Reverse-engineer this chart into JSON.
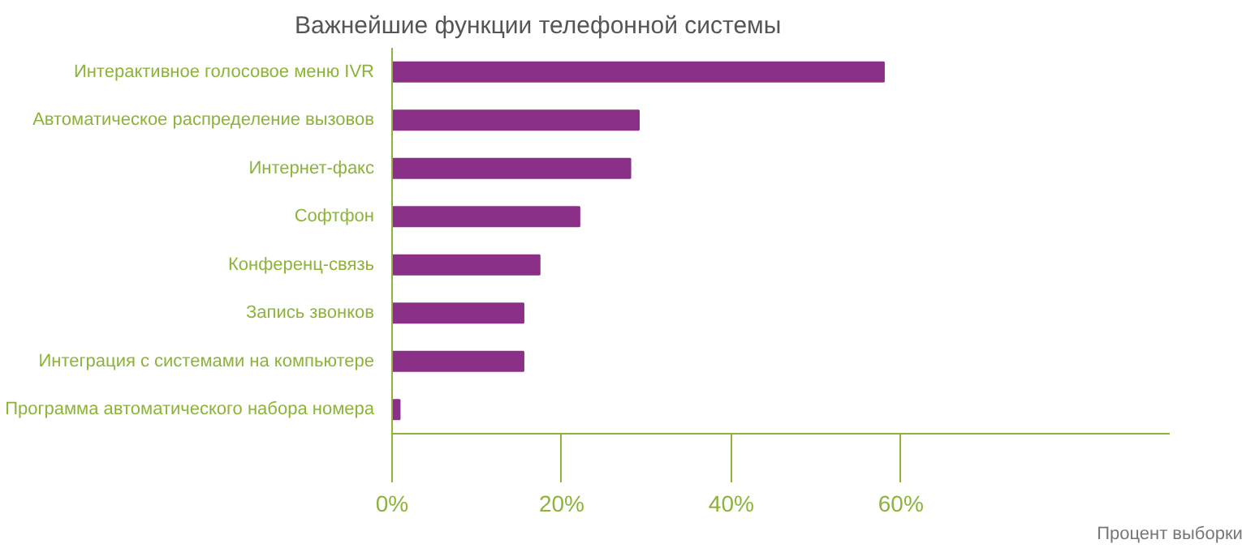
{
  "chart_data": {
    "type": "bar",
    "orientation": "horizontal",
    "title": "Важнейшие функции телефонной системы",
    "xlabel": "Процент выборки",
    "categories": [
      "Интерактивное голосовое меню IVR",
      "Автоматическое распределение вызовов",
      "Интернет-факс",
      "Софтфон",
      "Конференц-связь",
      "Запись звонков",
      "Интеграция с системами на компьютере",
      "Программа автоматического набора номера"
    ],
    "series": [
      {
        "color": "#8b3087",
        "values": [
          58.0,
          29.1,
          28.1,
          22.1,
          17.4,
          15.5,
          15.5,
          0.9
        ]
      }
    ],
    "xlim": [
      0,
      91.7
    ],
    "xticks": [
      {
        "value": 0,
        "label": "0%"
      },
      {
        "value": 20,
        "label": "20%"
      },
      {
        "value": 40,
        "label": "40%"
      },
      {
        "value": 60,
        "label": "60%"
      }
    ],
    "grid": false
  }
}
